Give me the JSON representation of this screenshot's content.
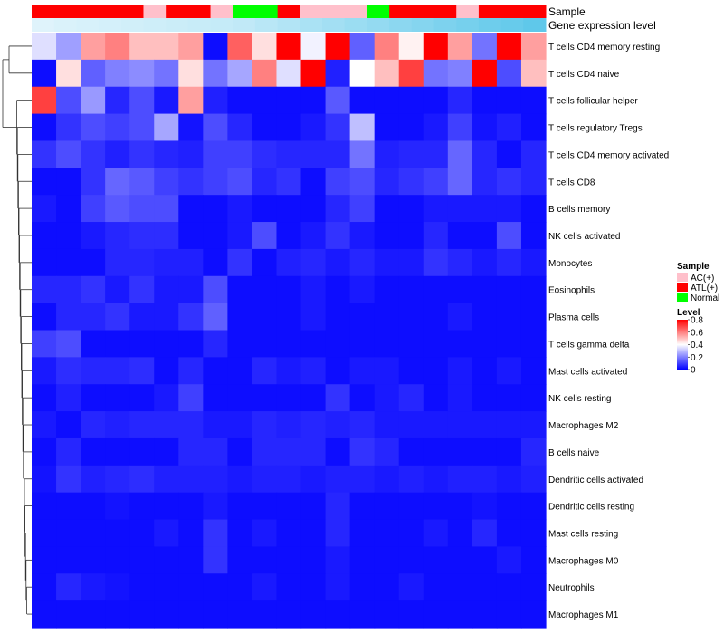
{
  "chart_data": {
    "type": "heatmap",
    "title": "",
    "annotation_tracks": [
      {
        "name": "Sample",
        "label": "Sample"
      },
      {
        "name": "Gene expression level",
        "label": "Gene expression level"
      }
    ],
    "columns": 23,
    "sample_group_per_column": [
      "ATL(+)",
      "ATL(+)",
      "ATL(+)",
      "ATL(+)",
      "ATL(+)",
      "AC(+)",
      "ATL(+)",
      "ATL(+)",
      "AC(+)",
      "Normal",
      "Normal",
      "ATL(+)",
      "AC(+)",
      "AC(+)",
      "AC(+)",
      "Normal",
      "ATL(+)",
      "ATL(+)",
      "ATL(+)",
      "AC(+)",
      "ATL(+)",
      "ATL(+)",
      "ATL(+)"
    ],
    "gene_expression_level_per_column": [
      0.05,
      0.08,
      0.1,
      0.12,
      0.14,
      0.16,
      0.18,
      0.2,
      0.22,
      0.25,
      0.3,
      0.35,
      0.4,
      0.45,
      0.5,
      0.55,
      0.6,
      0.65,
      0.7,
      0.75,
      0.8,
      0.85,
      0.9
    ],
    "rows": [
      "T cells CD4 memory resting",
      "T cells CD4 naive",
      "T cells follicular helper",
      "T cells regulatory  Tregs",
      "T cells CD4 memory activated",
      "T cells CD8",
      "B cells memory",
      "NK cells activated",
      "Monocytes",
      "Eosinophils",
      "Plasma cells",
      "T cells gamma delta",
      "Mast cells activated",
      "NK cells resting",
      "Macrophages M2",
      "B cells naive",
      "Dendritic cells activated",
      "Dendritic cells resting",
      "Mast cells resting",
      "Macrophages M0",
      "Neutrophils",
      "Macrophages M1"
    ],
    "values": [
      [
        0.35,
        0.25,
        0.55,
        0.6,
        0.5,
        0.5,
        0.55,
        0.02,
        0.65,
        0.45,
        0.8,
        0.38,
        0.8,
        0.15,
        0.6,
        0.42,
        0.8,
        0.55,
        0.18,
        0.8,
        0.55
      ],
      [
        0.02,
        0.45,
        0.15,
        0.2,
        0.22,
        0.18,
        0.45,
        0.18,
        0.26,
        0.6,
        0.35,
        0.8,
        0.05,
        0.4,
        0.5,
        0.7,
        0.18,
        0.2,
        0.8,
        0.12,
        0.5
      ],
      [
        0.7,
        0.12,
        0.24,
        0.06,
        0.12,
        0.04,
        0.55,
        0.05,
        0.02,
        0.02,
        0.02,
        0.02,
        0.14,
        0.02,
        0.02,
        0.02,
        0.02,
        0.06,
        0.02,
        0.02,
        0.02
      ],
      [
        0.02,
        0.08,
        0.12,
        0.1,
        0.12,
        0.26,
        0.03,
        0.12,
        0.06,
        0.02,
        0.02,
        0.04,
        0.08,
        0.3,
        0.02,
        0.02,
        0.04,
        0.1,
        0.03,
        0.05,
        0.02
      ],
      [
        0.08,
        0.12,
        0.08,
        0.05,
        0.08,
        0.06,
        0.05,
        0.1,
        0.1,
        0.07,
        0.06,
        0.06,
        0.06,
        0.18,
        0.05,
        0.06,
        0.06,
        0.16,
        0.06,
        0.02,
        0.06
      ],
      [
        0.02,
        0.02,
        0.08,
        0.16,
        0.14,
        0.1,
        0.08,
        0.1,
        0.12,
        0.06,
        0.08,
        0.02,
        0.1,
        0.12,
        0.06,
        0.08,
        0.1,
        0.16,
        0.06,
        0.08,
        0.06
      ],
      [
        0.04,
        0.02,
        0.1,
        0.14,
        0.12,
        0.12,
        0.02,
        0.02,
        0.04,
        0.02,
        0.02,
        0.02,
        0.06,
        0.1,
        0.02,
        0.02,
        0.04,
        0.04,
        0.04,
        0.04,
        0.02
      ],
      [
        0.02,
        0.02,
        0.04,
        0.06,
        0.07,
        0.07,
        0.02,
        0.02,
        0.04,
        0.12,
        0.02,
        0.04,
        0.08,
        0.04,
        0.02,
        0.02,
        0.06,
        0.02,
        0.02,
        0.12,
        0.02
      ],
      [
        0.02,
        0.02,
        0.02,
        0.06,
        0.06,
        0.05,
        0.05,
        0.02,
        0.08,
        0.02,
        0.05,
        0.06,
        0.04,
        0.06,
        0.04,
        0.04,
        0.08,
        0.06,
        0.04,
        0.06,
        0.04
      ],
      [
        0.06,
        0.06,
        0.08,
        0.04,
        0.08,
        0.04,
        0.04,
        0.12,
        0.02,
        0.02,
        0.02,
        0.04,
        0.02,
        0.04,
        0.02,
        0.02,
        0.02,
        0.02,
        0.02,
        0.02,
        0.02
      ],
      [
        0.02,
        0.06,
        0.06,
        0.08,
        0.04,
        0.04,
        0.08,
        0.15,
        0.02,
        0.02,
        0.02,
        0.04,
        0.02,
        0.02,
        0.02,
        0.02,
        0.02,
        0.04,
        0.02,
        0.02,
        0.02
      ],
      [
        0.1,
        0.12,
        0.02,
        0.02,
        0.02,
        0.02,
        0.02,
        0.06,
        0.02,
        0.02,
        0.02,
        0.02,
        0.02,
        0.02,
        0.02,
        0.02,
        0.02,
        0.02,
        0.02,
        0.02,
        0.02
      ],
      [
        0.04,
        0.07,
        0.06,
        0.06,
        0.07,
        0.02,
        0.06,
        0.02,
        0.02,
        0.06,
        0.04,
        0.05,
        0.02,
        0.04,
        0.04,
        0.02,
        0.02,
        0.04,
        0.02,
        0.04,
        0.02
      ],
      [
        0.02,
        0.05,
        0.02,
        0.02,
        0.02,
        0.04,
        0.1,
        0.02,
        0.02,
        0.02,
        0.02,
        0.02,
        0.08,
        0.02,
        0.04,
        0.06,
        0.02,
        0.04,
        0.02,
        0.02,
        0.02
      ],
      [
        0.04,
        0.02,
        0.06,
        0.05,
        0.06,
        0.06,
        0.06,
        0.04,
        0.04,
        0.06,
        0.05,
        0.06,
        0.05,
        0.06,
        0.04,
        0.04,
        0.04,
        0.04,
        0.04,
        0.04,
        0.04
      ],
      [
        0.02,
        0.06,
        0.02,
        0.02,
        0.02,
        0.02,
        0.06,
        0.06,
        0.02,
        0.06,
        0.06,
        0.06,
        0.02,
        0.08,
        0.06,
        0.02,
        0.02,
        0.02,
        0.02,
        0.02,
        0.06
      ],
      [
        0.03,
        0.08,
        0.05,
        0.06,
        0.07,
        0.05,
        0.05,
        0.05,
        0.04,
        0.05,
        0.05,
        0.04,
        0.05,
        0.05,
        0.04,
        0.05,
        0.04,
        0.05,
        0.05,
        0.04,
        0.05
      ],
      [
        0.02,
        0.02,
        0.02,
        0.03,
        0.02,
        0.02,
        0.02,
        0.04,
        0.02,
        0.02,
        0.02,
        0.02,
        0.06,
        0.02,
        0.02,
        0.02,
        0.02,
        0.02,
        0.03,
        0.02,
        0.02
      ],
      [
        0.02,
        0.02,
        0.02,
        0.02,
        0.02,
        0.04,
        0.02,
        0.08,
        0.02,
        0.04,
        0.02,
        0.02,
        0.06,
        0.02,
        0.02,
        0.02,
        0.04,
        0.02,
        0.06,
        0.02,
        0.02
      ],
      [
        0.02,
        0.02,
        0.02,
        0.02,
        0.02,
        0.02,
        0.02,
        0.08,
        0.02,
        0.02,
        0.02,
        0.02,
        0.04,
        0.02,
        0.02,
        0.02,
        0.02,
        0.02,
        0.02,
        0.04,
        0.02
      ],
      [
        0.02,
        0.06,
        0.04,
        0.03,
        0.02,
        0.02,
        0.02,
        0.02,
        0.02,
        0.04,
        0.02,
        0.02,
        0.04,
        0.02,
        0.02,
        0.04,
        0.02,
        0.02,
        0.02,
        0.02,
        0.02
      ],
      [
        0.02,
        0.02,
        0.02,
        0.02,
        0.02,
        0.02,
        0.02,
        0.02,
        0.02,
        0.02,
        0.02,
        0.02,
        0.02,
        0.02,
        0.02,
        0.02,
        0.02,
        0.02,
        0.02,
        0.02,
        0.02
      ]
    ],
    "color_scale": {
      "min": 0,
      "max": 0.8,
      "low": "#0000ff",
      "mid": "#ffffff",
      "high": "#ff0000"
    },
    "legend": {
      "sample_title": "Sample",
      "sample_entries": [
        {
          "label": "AC(+)",
          "color": "#ffc0cb"
        },
        {
          "label": "ATL(+)",
          "color": "#ff0000"
        },
        {
          "label": "Normal",
          "color": "#00ff00"
        }
      ],
      "level_title": "Level",
      "level_ticks": [
        "0.8",
        "0.6",
        "0.4",
        "0.2",
        "0"
      ],
      "level_tick_values": [
        0.8,
        0.6,
        0.4,
        0.2,
        0
      ],
      "placement": "right"
    },
    "row_dendrogram": true
  }
}
